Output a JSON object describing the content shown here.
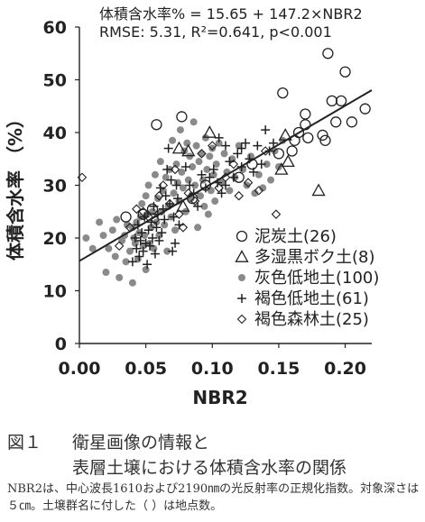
{
  "chart_data": {
    "type": "scatter",
    "xlabel": "NBR2",
    "ylabel": "体積含水率 （%）",
    "xlim": [
      0.0,
      0.22
    ],
    "ylim": [
      0,
      60
    ],
    "x_ticks": [
      "0.00",
      "0.05",
      "0.10",
      "0.15",
      "0.20"
    ],
    "y_ticks": [
      "0",
      "10",
      "20",
      "30",
      "40",
      "50",
      "60"
    ],
    "grid": false,
    "legend_position": "bottom-right",
    "annotations": [
      "体積含水率% = 15.65 + 147.2×NBR2",
      "RMSE: 5.31, R²=0.641, p<0.001"
    ],
    "regression": {
      "intercept": 15.65,
      "slope": 147.2,
      "x_range": [
        0.0,
        0.22
      ]
    },
    "series": [
      {
        "name": "泥炭土(26)",
        "marker": "open-circle",
        "points": [
          [
            0.058,
            41.5
          ],
          [
            0.077,
            43.0
          ],
          [
            0.153,
            47.5
          ],
          [
            0.187,
            55.0
          ],
          [
            0.2,
            51.5
          ],
          [
            0.197,
            46.0
          ],
          [
            0.19,
            46.0
          ],
          [
            0.17,
            43.5
          ],
          [
            0.17,
            41.5
          ],
          [
            0.165,
            40.0
          ],
          [
            0.162,
            38.5
          ],
          [
            0.172,
            39.0
          ],
          [
            0.183,
            39.5
          ],
          [
            0.185,
            38.5
          ],
          [
            0.193,
            42.0
          ],
          [
            0.205,
            42.0
          ],
          [
            0.215,
            44.5
          ],
          [
            0.16,
            36.5
          ],
          [
            0.15,
            36.0
          ],
          [
            0.13,
            34.0
          ],
          [
            0.12,
            31.5
          ],
          [
            0.095,
            30.0
          ],
          [
            0.085,
            27.5
          ],
          [
            0.048,
            24.5
          ],
          [
            0.035,
            24.0
          ],
          [
            0.055,
            25.5
          ]
        ]
      },
      {
        "name": "多湿黒ボク土(8)",
        "marker": "open-triangle",
        "points": [
          [
            0.075,
            37.0
          ],
          [
            0.082,
            36.5
          ],
          [
            0.098,
            40.0
          ],
          [
            0.152,
            33.0
          ],
          [
            0.157,
            34.5
          ],
          [
            0.18,
            29.0
          ],
          [
            0.078,
            26.0
          ],
          [
            0.155,
            39.5
          ]
        ]
      },
      {
        "name": "灰色低地土(100)",
        "marker": "filled-circle",
        "points": [
          [
            0.005,
            20.0
          ],
          [
            0.01,
            18.0
          ],
          [
            0.015,
            23.0
          ],
          [
            0.018,
            20.5
          ],
          [
            0.02,
            13.5
          ],
          [
            0.022,
            18.0
          ],
          [
            0.025,
            21.5
          ],
          [
            0.027,
            16.5
          ],
          [
            0.028,
            23.5
          ],
          [
            0.03,
            12.5
          ],
          [
            0.032,
            19.5
          ],
          [
            0.034,
            20.5
          ],
          [
            0.035,
            15.5
          ],
          [
            0.036,
            22.5
          ],
          [
            0.038,
            17.5
          ],
          [
            0.04,
            11.5
          ],
          [
            0.04,
            22.0
          ],
          [
            0.041,
            20.0
          ],
          [
            0.042,
            19.0
          ],
          [
            0.043,
            23.0
          ],
          [
            0.044,
            16.0
          ],
          [
            0.045,
            21.0
          ],
          [
            0.046,
            24.0
          ],
          [
            0.047,
            26.5
          ],
          [
            0.048,
            18.5
          ],
          [
            0.049,
            20.5
          ],
          [
            0.05,
            14.0
          ],
          [
            0.05,
            28.0
          ],
          [
            0.051,
            24.5
          ],
          [
            0.052,
            30.0
          ],
          [
            0.053,
            19.0
          ],
          [
            0.054,
            22.0
          ],
          [
            0.055,
            25.0
          ],
          [
            0.056,
            18.0
          ],
          [
            0.057,
            32.0
          ],
          [
            0.058,
            23.0
          ],
          [
            0.059,
            27.5
          ],
          [
            0.06,
            20.5
          ],
          [
            0.061,
            34.5
          ],
          [
            0.062,
            25.0
          ],
          [
            0.063,
            29.0
          ],
          [
            0.064,
            22.5
          ],
          [
            0.065,
            31.5
          ],
          [
            0.066,
            17.5
          ],
          [
            0.067,
            26.0
          ],
          [
            0.068,
            33.0
          ],
          [
            0.069,
            24.0
          ],
          [
            0.07,
            38.5
          ],
          [
            0.071,
            28.5
          ],
          [
            0.072,
            21.5
          ],
          [
            0.073,
            34.0
          ],
          [
            0.074,
            30.5
          ],
          [
            0.075,
            27.0
          ],
          [
            0.076,
            40.5
          ],
          [
            0.077,
            32.5
          ],
          [
            0.078,
            29.5
          ],
          [
            0.079,
            36.5
          ],
          [
            0.08,
            25.0
          ],
          [
            0.081,
            38.0
          ],
          [
            0.082,
            31.0
          ],
          [
            0.083,
            35.5
          ],
          [
            0.084,
            27.5
          ],
          [
            0.085,
            33.5
          ],
          [
            0.086,
            42.0
          ],
          [
            0.087,
            30.0
          ],
          [
            0.088,
            37.5
          ],
          [
            0.089,
            22.0
          ],
          [
            0.09,
            34.5
          ],
          [
            0.091,
            28.0
          ],
          [
            0.092,
            36.0
          ],
          [
            0.093,
            31.0
          ],
          [
            0.094,
            26.0
          ],
          [
            0.095,
            39.0
          ],
          [
            0.096,
            33.0
          ],
          [
            0.097,
            24.5
          ],
          [
            0.098,
            35.5
          ],
          [
            0.099,
            29.0
          ],
          [
            0.1,
            37.0
          ],
          [
            0.101,
            32.0
          ],
          [
            0.102,
            27.0
          ],
          [
            0.103,
            34.0
          ],
          [
            0.105,
            38.0
          ],
          [
            0.107,
            30.5
          ],
          [
            0.109,
            36.0
          ],
          [
            0.111,
            32.5
          ],
          [
            0.113,
            29.0
          ],
          [
            0.115,
            35.0
          ],
          [
            0.117,
            31.5
          ],
          [
            0.12,
            37.5
          ],
          [
            0.123,
            33.0
          ],
          [
            0.126,
            30.0
          ],
          [
            0.129,
            35.5
          ],
          [
            0.132,
            28.5
          ],
          [
            0.135,
            32.0
          ],
          [
            0.138,
            29.5
          ],
          [
            0.141,
            34.0
          ],
          [
            0.144,
            31.0
          ],
          [
            0.147,
            36.5
          ],
          [
            0.15,
            33.5
          ],
          [
            0.153,
            38.5
          ]
        ]
      },
      {
        "name": "褐色低地土(61)",
        "marker": "plus",
        "points": [
          [
            0.04,
            15.5
          ],
          [
            0.042,
            20.0
          ],
          [
            0.043,
            18.0
          ],
          [
            0.044,
            22.5
          ],
          [
            0.045,
            16.5
          ],
          [
            0.046,
            19.5
          ],
          [
            0.047,
            21.0
          ],
          [
            0.048,
            17.5
          ],
          [
            0.049,
            24.0
          ],
          [
            0.05,
            19.0
          ],
          [
            0.051,
            15.0
          ],
          [
            0.052,
            21.5
          ],
          [
            0.053,
            18.5
          ],
          [
            0.054,
            23.0
          ],
          [
            0.055,
            20.0
          ],
          [
            0.056,
            26.0
          ],
          [
            0.057,
            17.0
          ],
          [
            0.058,
            22.0
          ],
          [
            0.059,
            24.5
          ],
          [
            0.06,
            19.5
          ],
          [
            0.061,
            29.5
          ],
          [
            0.062,
            21.0
          ],
          [
            0.063,
            25.5
          ],
          [
            0.064,
            23.5
          ],
          [
            0.065,
            28.0
          ],
          [
            0.066,
            33.0
          ],
          [
            0.067,
            37.0
          ],
          [
            0.068,
            26.5
          ],
          [
            0.069,
            31.0
          ],
          [
            0.07,
            17.5
          ],
          [
            0.071,
            24.0
          ],
          [
            0.072,
            19.0
          ],
          [
            0.073,
            30.0
          ],
          [
            0.074,
            27.5
          ],
          [
            0.075,
            22.5
          ],
          [
            0.08,
            33.5
          ],
          [
            0.083,
            30.0
          ],
          [
            0.086,
            28.5
          ],
          [
            0.089,
            26.0
          ],
          [
            0.092,
            32.0
          ],
          [
            0.095,
            29.5
          ],
          [
            0.098,
            31.5
          ],
          [
            0.101,
            33.0
          ],
          [
            0.104,
            30.5
          ],
          [
            0.107,
            28.5
          ],
          [
            0.11,
            30.0
          ],
          [
            0.113,
            34.5
          ],
          [
            0.116,
            31.5
          ],
          [
            0.119,
            36.0
          ],
          [
            0.122,
            33.5
          ],
          [
            0.125,
            38.0
          ],
          [
            0.128,
            35.0
          ],
          [
            0.131,
            32.5
          ],
          [
            0.134,
            37.5
          ],
          [
            0.137,
            34.0
          ],
          [
            0.14,
            40.5
          ],
          [
            0.143,
            36.5
          ],
          [
            0.146,
            38.0
          ],
          [
            0.11,
            37.5
          ],
          [
            0.122,
            37.0
          ],
          [
            0.105,
            39.0
          ]
        ]
      },
      {
        "name": "褐色森林土(25)",
        "marker": "open-diamond",
        "points": [
          [
            0.002,
            31.5
          ],
          [
            0.03,
            18.5
          ],
          [
            0.038,
            22.0
          ],
          [
            0.043,
            25.5
          ],
          [
            0.048,
            25.0
          ],
          [
            0.052,
            24.0
          ],
          [
            0.057,
            23.5
          ],
          [
            0.06,
            28.0
          ],
          [
            0.063,
            30.0
          ],
          [
            0.068,
            26.5
          ],
          [
            0.072,
            33.0
          ],
          [
            0.075,
            24.5
          ],
          [
            0.078,
            22.0
          ],
          [
            0.082,
            28.5
          ],
          [
            0.087,
            27.0
          ],
          [
            0.092,
            36.0
          ],
          [
            0.1,
            37.5
          ],
          [
            0.105,
            29.5
          ],
          [
            0.11,
            31.5
          ],
          [
            0.116,
            34.0
          ],
          [
            0.12,
            28.0
          ],
          [
            0.127,
            30.5
          ],
          [
            0.135,
            29.0
          ],
          [
            0.14,
            36.5
          ],
          [
            0.148,
            24.5
          ]
        ]
      }
    ]
  },
  "caption": {
    "figure_label": "図１",
    "title_line1": "衛星画像の情報と",
    "title_line2": "表層土壌における体積含水率の関係"
  },
  "note": "NBR2は、中心波長1610および2190㎚の光反射率の正規化指数。対象深さは５㎝。土壌群名に付した（ ）は地点数。"
}
